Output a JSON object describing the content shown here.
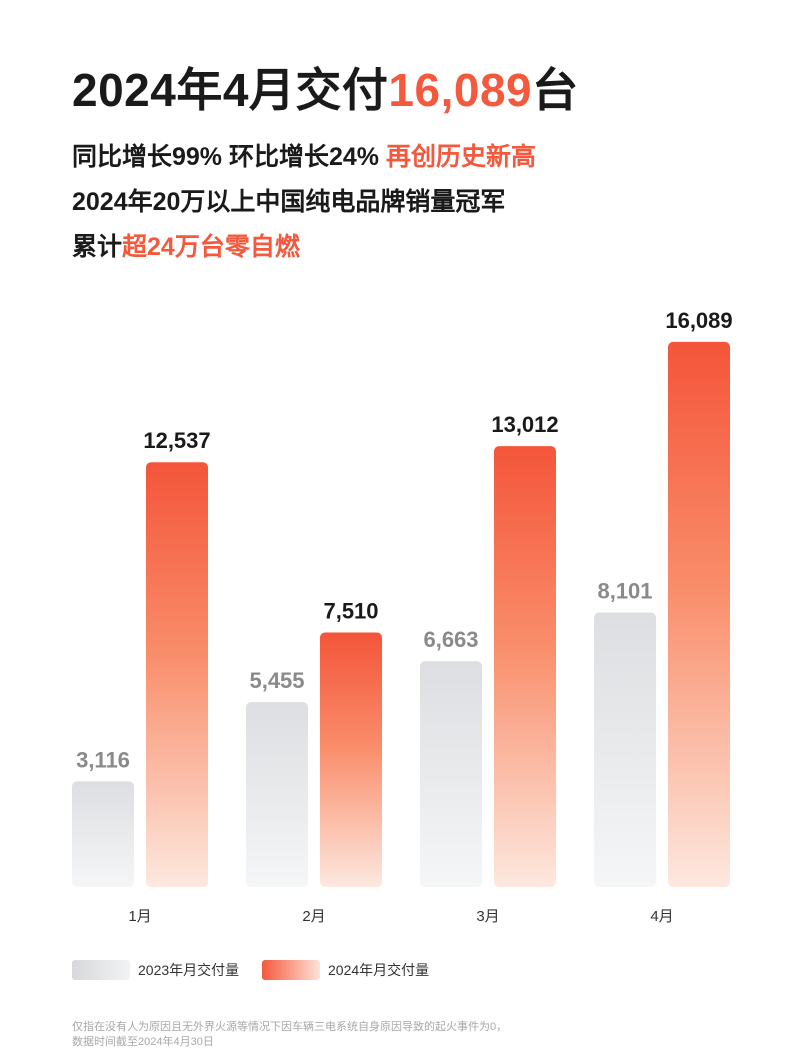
{
  "header": {
    "headline_prefix": "2024年4月交付",
    "headline_number": "16,089",
    "headline_suffix": "台",
    "line1_plain": "同比增长99% 环比增长24% ",
    "line1_highlight": "再创历史新高",
    "line2": "2024年20万以上中国纯电品牌销量冠军",
    "line3_plain": "累计",
    "line3_highlight": "超24万台零自燃"
  },
  "colors": {
    "accent": "#f4593d",
    "bar_2024_top": "#f4553a",
    "bar_2024_bottom": "#fde8df",
    "bar_2023_top": "#dcdee1",
    "bar_2023_bottom": "#f5f6f7",
    "label_2023": "#8a8a8a",
    "label_2024": "#1a1a1a"
  },
  "chart_data": {
    "type": "bar",
    "categories": [
      "1月",
      "2月",
      "3月",
      "4月"
    ],
    "series": [
      {
        "name": "2023年月交付量",
        "values": [
          3116,
          5455,
          6663,
          8101
        ],
        "labels": [
          "3,116",
          "5,455",
          "6,663",
          "8,101"
        ]
      },
      {
        "name": "2024年月交付量",
        "values": [
          12537,
          7510,
          13012,
          16089
        ],
        "labels": [
          "12,537",
          "7,510",
          "13,012",
          "16,089"
        ]
      }
    ],
    "title": "",
    "xlabel": "",
    "ylabel": "",
    "ylim": [
      0,
      17000
    ],
    "grid": false,
    "legend_position": "bottom-left"
  },
  "legend": {
    "label_2023": "2023年月交付量",
    "label_2024": "2024年月交付量"
  },
  "footnote": {
    "line1": "仅指在没有人为原因且无外界火源等情况下因车辆三电系统自身原因导致的起火事件为0，",
    "line2": "数据时间截至2024年4月30日"
  }
}
